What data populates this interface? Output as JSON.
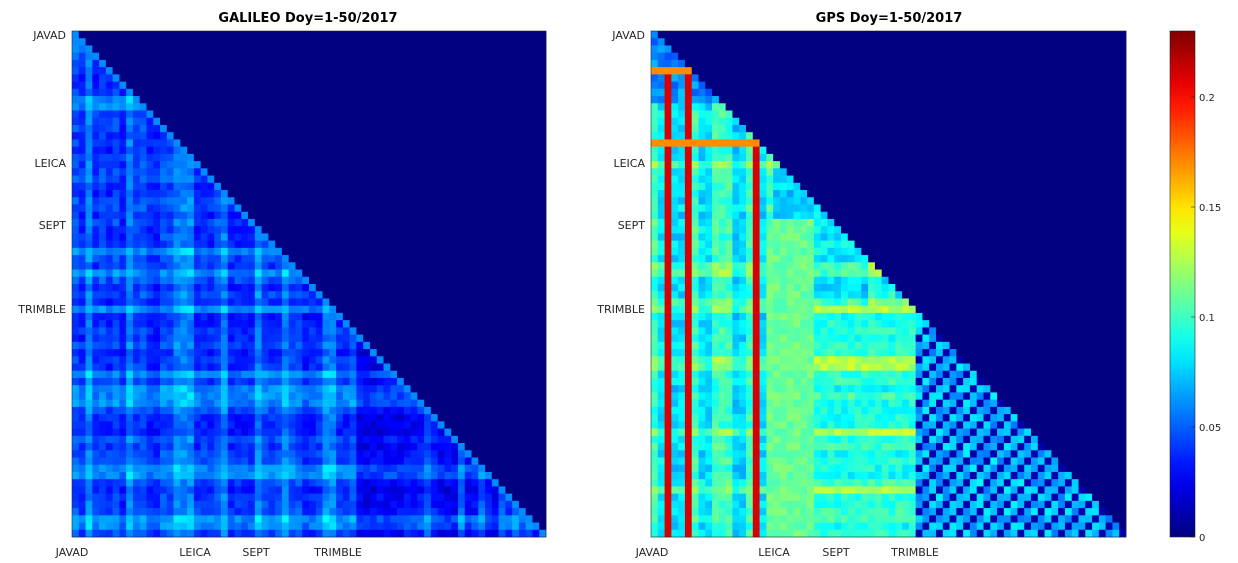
{
  "chart_data": [
    {
      "type": "heatmap",
      "title": "GALILEO Doy=1-50/2017",
      "xlabel": "",
      "ylabel": "",
      "grid": false,
      "x_tick_labels": [
        "JAVAD",
        "LEICA",
        "SEPT",
        "TRIMBLE"
      ],
      "y_tick_labels": [
        "JAVAD",
        "LEICA",
        "SEPT",
        "TRIMBLE"
      ],
      "matrix_shape": "lower-triangular",
      "value_range": [
        0,
        0.1
      ],
      "description_values": {
        "upper_triangle": 0,
        "typical_lower": 0.05,
        "bright_stripes": 0.08
      }
    },
    {
      "type": "heatmap",
      "title": "GPS Doy=1-50/2017",
      "xlabel": "",
      "ylabel": "",
      "grid": false,
      "x_tick_labels": [
        "JAVAD",
        "LEICA",
        "SEPT",
        "TRIMBLE"
      ],
      "y_tick_labels": [
        "JAVAD",
        "LEICA",
        "SEPT",
        "TRIMBLE"
      ],
      "matrix_shape": "lower-triangular",
      "value_range": [
        0,
        0.23
      ],
      "description_values": {
        "upper_triangle": 0,
        "typical_lower": 0.08,
        "sept_block": 0.11,
        "red_stripes": 0.21
      }
    }
  ],
  "colorbar": {
    "colormap": "jet",
    "min": 0,
    "max": 0.23,
    "ticks": [
      0,
      0.05,
      0.1,
      0.15,
      0.2
    ],
    "tick_labels": [
      "0",
      "0.05",
      "0.1",
      "0.15",
      "0.2"
    ]
  }
}
